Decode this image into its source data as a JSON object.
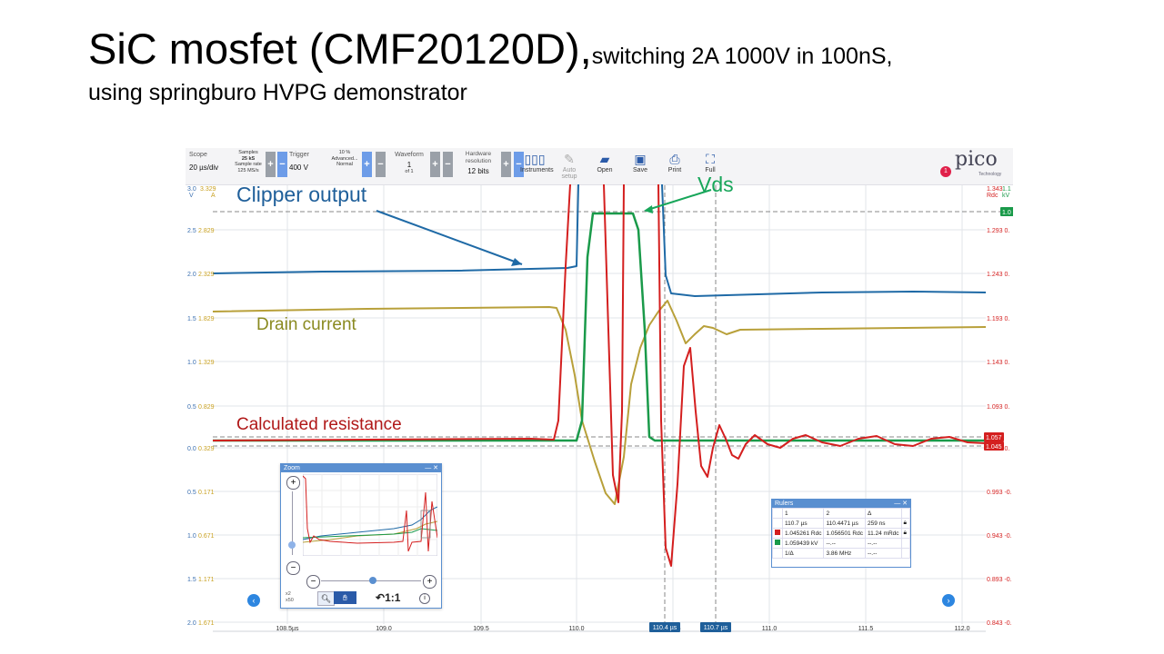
{
  "slide": {
    "title_main": "SiC mosfet (CMF20120D),",
    "title_tail": "switching 2A 1000V in 100nS,",
    "title_line2": "using springburo HVPG demonstrator"
  },
  "toolbar": {
    "scope_label": "Scope",
    "timebase": "20 µs/div",
    "samples_label": "Samples",
    "samples_value": "25 kS",
    "sample_rate_label": "Sample rate",
    "sample_rate_value": "125 MS/s",
    "trigger_label": "Trigger",
    "trigger_value": "400 V",
    "trigger_pct": "10 %",
    "trigger_mode_label": "Advanced...",
    "trigger_mode_value": "Normal",
    "waveform_label": "Waveform",
    "waveform_value": "1",
    "waveform_of": "of 1",
    "hw_res_label": "Hardware resolution",
    "hw_res_value": "12 bits",
    "instruments": "Instruments",
    "autosetup": "Auto setup",
    "open": "Open",
    "save": "Save",
    "print": "Print",
    "full": "Full",
    "logo": "pico",
    "logo_sub": "Technology",
    "notification_count": "1"
  },
  "axes": {
    "left_a_header": "3.0",
    "left_b_header": "3.329",
    "left_unit_a": "V",
    "left_unit_b": "A",
    "left_ticks": [
      {
        "a": "2.5",
        "b": "2.829"
      },
      {
        "a": "2.0",
        "b": "2.329"
      },
      {
        "a": "1.5",
        "b": "1.829"
      },
      {
        "a": "1.0",
        "b": "1.329"
      },
      {
        "a": "0.5",
        "b": "0.829"
      },
      {
        "a": "0.0",
        "b": "0.329"
      },
      {
        "a": "0.5",
        "b": "0.171"
      },
      {
        "a": "1.0",
        "b": "0.671"
      },
      {
        "a": "1.5",
        "b": "1.171"
      },
      {
        "a": "2.0",
        "b": "1.671"
      }
    ],
    "right_header": "1.343",
    "right_header2": "1.1",
    "right_unit_a": "Rdc",
    "right_unit_b": "kV",
    "right_ticks": [
      "1.293 0.",
      "1.243 0.",
      "1.193 0.",
      "1.143 0.",
      "1.093 0.",
      "1.045 0.",
      "0.993 -0.",
      "0.943 -0.",
      "0.893 -0.",
      "0.843 -0."
    ],
    "x_ticks": [
      "108.5µs",
      "109.0",
      "109.5",
      "110.0",
      "110.5",
      "111.0",
      "111.5",
      "112.0"
    ],
    "ruler1_x": "110.4 µs",
    "ruler2_x": "110.7 µs",
    "marker_1057": "1.057",
    "marker_1045": "1.045",
    "marker_top": "1.0"
  },
  "annotations": {
    "clipper": "Clipper output",
    "vds": "Vds",
    "drain": "Drain current",
    "resistance": "Calculated resistance"
  },
  "zoom": {
    "title": "Zoom",
    "close": "— ✕",
    "zoom_x2": "x2",
    "zoom_x50": "x50",
    "one_to_one": "1:1"
  },
  "rulers": {
    "title": "Rulers",
    "col1": "1",
    "col2": "2",
    "col3": "Δ",
    "r1c1": "110.7 µs",
    "r1c2": "110.4471 µs",
    "r1c3": "259 ns",
    "r2c1": "1.045261 Rdc",
    "r2c2": "1.056501 Rdc",
    "r2c3": "11.24 mRdc",
    "r3c1": "1.059439 kV",
    "r3c2": "--.--",
    "r3c3": "--.--",
    "r4c1": "1/Δ",
    "r4c2": "3.86 MHz",
    "r4c3": "--.--"
  },
  "colors": {
    "blue": "#1f6aa6",
    "green": "#1a9a4a",
    "gold": "#b8a03a",
    "red": "#d41f1f",
    "annotation_blue": "#1f5f9a",
    "annotation_green": "#18a65a",
    "annotation_gold": "#8a8a20",
    "annotation_red": "#b01818"
  }
}
